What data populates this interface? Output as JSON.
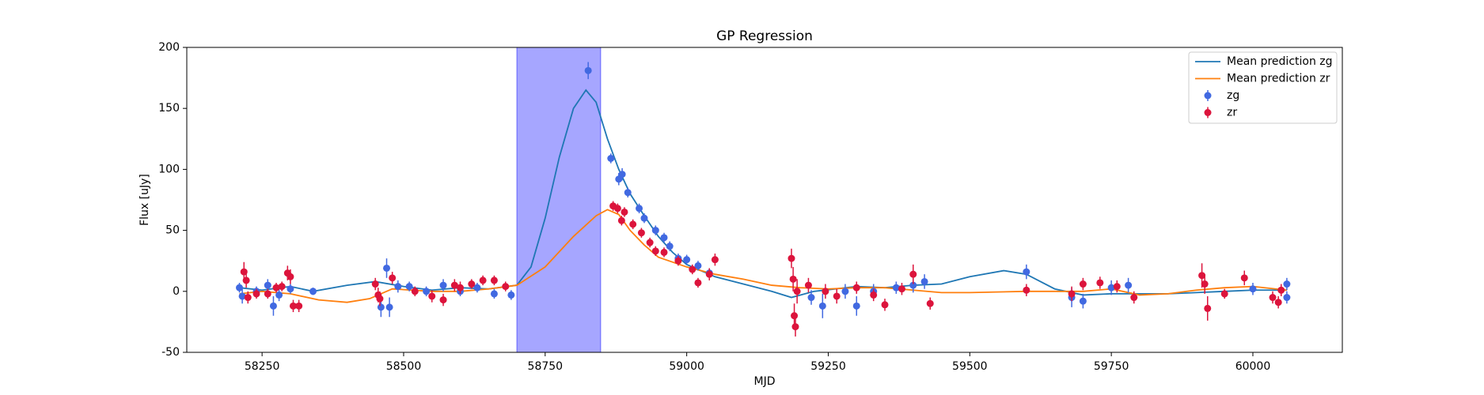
{
  "chart_data": {
    "type": "line",
    "title": "GP Regression",
    "x_label": "MJD",
    "y_label": "Flux [uJy]",
    "xlim": [
      58117,
      60158
    ],
    "ylim": [
      -50,
      200
    ],
    "xticks": [
      58250,
      58500,
      58750,
      59000,
      59250,
      59500,
      59750,
      60000
    ],
    "yticks": [
      -50,
      0,
      50,
      100,
      150,
      200
    ],
    "legend": "upper right",
    "span": {
      "x": [
        58700,
        58848
      ],
      "color": "#0000ff"
    },
    "series": [
      {
        "name": "Mean prediction zg",
        "kind": "line",
        "color": "#1f77b4",
        "x": [
          58210,
          58250,
          58300,
          58340,
          58400,
          58450,
          58500,
          58550,
          58600,
          58650,
          58700,
          58725,
          58750,
          58775,
          58800,
          58822,
          58840,
          58860,
          58880,
          58900,
          58925,
          58950,
          58975,
          59000,
          59050,
          59100,
          59150,
          59185,
          59225,
          59300,
          59350,
          59400,
          59450,
          59500,
          59560,
          59600,
          59650,
          59700,
          59750,
          59800,
          59850,
          59900,
          59950,
          60000,
          60060
        ],
        "values": [
          3,
          1,
          4,
          0,
          5,
          8,
          4,
          1,
          3,
          2,
          5,
          20,
          60,
          110,
          150,
          165,
          155,
          125,
          100,
          80,
          62,
          45,
          32,
          22,
          12,
          6,
          0,
          -5,
          0,
          4,
          3,
          5,
          6,
          12,
          17,
          14,
          2,
          -3,
          -2,
          -2,
          -2,
          -1,
          0,
          1,
          1
        ]
      },
      {
        "name": "Mean prediction zr",
        "kind": "line",
        "color": "#ff7f0e",
        "x": [
          58210,
          58250,
          58300,
          58350,
          58400,
          58440,
          58480,
          58550,
          58600,
          58650,
          58700,
          58750,
          58800,
          58840,
          58860,
          58880,
          58900,
          58925,
          58950,
          59000,
          59050,
          59100,
          59150,
          59200,
          59250,
          59300,
          59350,
          59400,
          59450,
          59500,
          59600,
          59700,
          59750,
          59800,
          59850,
          59900,
          59950,
          60000,
          60060
        ],
        "values": [
          -2,
          0,
          -2,
          -7,
          -9,
          -6,
          2,
          0,
          0,
          2,
          5,
          20,
          45,
          62,
          67,
          63,
          50,
          38,
          28,
          20,
          14,
          10,
          5,
          3,
          2,
          3,
          3,
          1,
          -1,
          -1,
          0,
          0,
          2,
          -3,
          -2,
          1,
          3,
          4,
          1
        ]
      },
      {
        "name": "zg",
        "kind": "errorbar",
        "color": "#4169e1",
        "x": [
          58210,
          58215,
          58240,
          58260,
          58270,
          58280,
          58300,
          58340,
          58460,
          58470,
          58475,
          58490,
          58510,
          58540,
          58570,
          58600,
          58630,
          58660,
          58690,
          58826,
          58866,
          58880,
          58886,
          58896,
          58916,
          58925,
          58945,
          58960,
          58970,
          58985,
          59000,
          59020,
          59040,
          59220,
          59240,
          59280,
          59300,
          59330,
          59370,
          59400,
          59420,
          59600,
          59680,
          59700,
          59750,
          59780,
          60000,
          60060,
          60060
        ],
        "values": [
          3,
          -4,
          0,
          5,
          -12,
          -3,
          2,
          0,
          -13,
          19,
          -13,
          4,
          4,
          0,
          5,
          0,
          3,
          -2,
          -3,
          181,
          109,
          92,
          96,
          81,
          68,
          60,
          50,
          44,
          37,
          27,
          26,
          21,
          15,
          -5,
          -12,
          0,
          -12,
          0,
          3,
          5,
          8,
          16,
          -5,
          -8,
          3,
          5,
          2,
          6,
          -5
        ],
        "errors": [
          4,
          6,
          4,
          5,
          8,
          5,
          4,
          3,
          8,
          8,
          8,
          5,
          4,
          4,
          5,
          4,
          4,
          4,
          4,
          7,
          4,
          5,
          5,
          4,
          4,
          4,
          4,
          4,
          4,
          4,
          4,
          4,
          4,
          6,
          10,
          6,
          8,
          6,
          5,
          6,
          6,
          6,
          8,
          6,
          6,
          6,
          5,
          5,
          5
        ]
      },
      {
        "name": "zr",
        "kind": "errorbar",
        "color": "#dc143c",
        "x": [
          58218,
          58222,
          58225,
          58240,
          58260,
          58275,
          58285,
          58295,
          58300,
          58305,
          58315,
          58450,
          58455,
          58458,
          58480,
          58520,
          58550,
          58570,
          58590,
          58600,
          58620,
          58640,
          58660,
          58680,
          58870,
          58878,
          58885,
          58890,
          58905,
          58920,
          58935,
          58945,
          58960,
          58985,
          59010,
          59020,
          59040,
          59050,
          59185,
          59188,
          59190,
          59192,
          59195,
          59215,
          59245,
          59265,
          59300,
          59330,
          59350,
          59380,
          59400,
          59430,
          59600,
          59680,
          59700,
          59730,
          59760,
          59790,
          59910,
          59915,
          59920,
          59950,
          59985,
          60035,
          60045,
          60050
        ],
        "values": [
          16,
          9,
          -5,
          -2,
          -2,
          3,
          4,
          15,
          12,
          -12,
          -12,
          6,
          -3,
          -6,
          11,
          0,
          -4,
          -7,
          5,
          3,
          6,
          9,
          9,
          4,
          70,
          68,
          58,
          65,
          55,
          48,
          40,
          33,
          32,
          25,
          18,
          7,
          14,
          26,
          27,
          10,
          -20,
          -29,
          0,
          5,
          0,
          -4,
          3,
          -3,
          -11,
          2,
          14,
          -10,
          1,
          -2,
          6,
          7,
          4,
          -5,
          13,
          6,
          -14,
          -2,
          11,
          -5,
          -9,
          1
        ],
        "errors": [
          8,
          6,
          5,
          4,
          4,
          4,
          4,
          6,
          6,
          5,
          5,
          5,
          6,
          6,
          5,
          4,
          5,
          5,
          5,
          5,
          4,
          4,
          4,
          4,
          4,
          4,
          4,
          4,
          4,
          4,
          4,
          4,
          4,
          4,
          4,
          4,
          5,
          5,
          8,
          10,
          10,
          8,
          10,
          6,
          6,
          6,
          5,
          5,
          5,
          5,
          8,
          5,
          5,
          6,
          5,
          5,
          5,
          5,
          10,
          8,
          10,
          4,
          6,
          5,
          5,
          5
        ]
      }
    ]
  }
}
